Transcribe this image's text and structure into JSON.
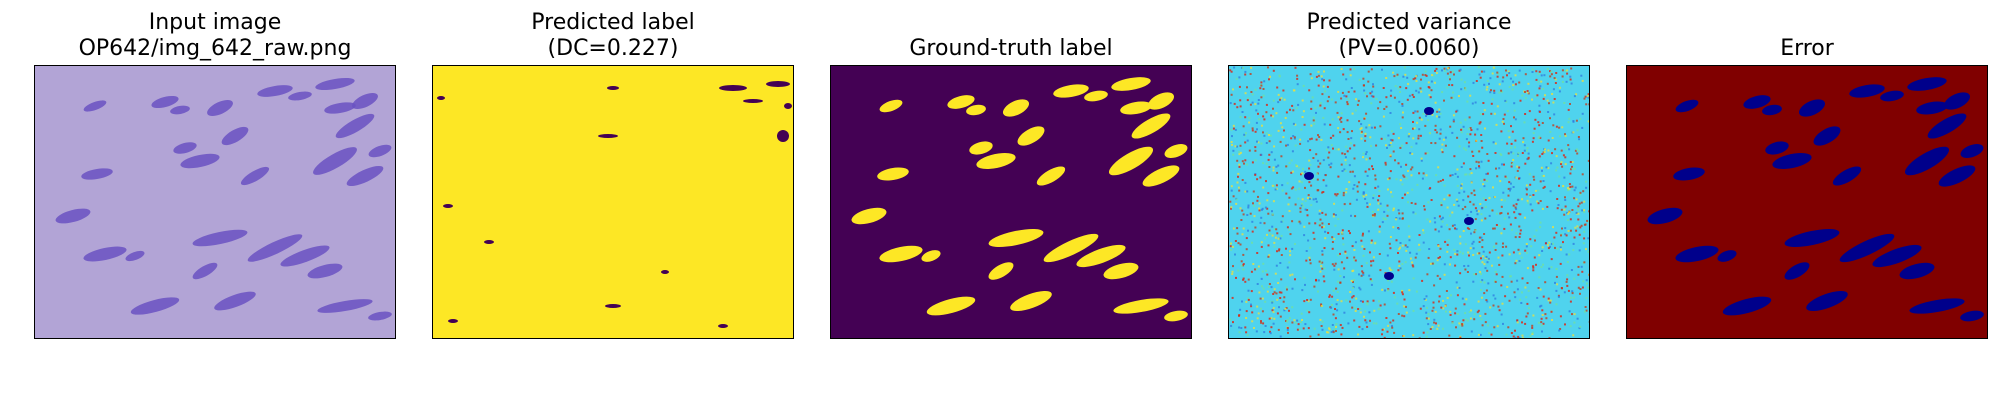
{
  "panels": [
    {
      "id": "input",
      "title_lines": [
        "Input image",
        "OP642/img_642_raw.png"
      ]
    },
    {
      "id": "predicted-label",
      "title_lines": [
        "Predicted label",
        "(DC=0.227)"
      ]
    },
    {
      "id": "ground-truth",
      "title_lines": [
        "",
        "Ground-truth label"
      ]
    },
    {
      "id": "predicted-variance",
      "title_lines": [
        "Predicted variance",
        "(PV=0.0060)"
      ]
    },
    {
      "id": "error",
      "title_lines": [
        "",
        "Error"
      ]
    }
  ],
  "colors": {
    "input_bg": "#b2a4d6",
    "input_nuclei": "#6a52c2",
    "viridis_yellow": "#fde725",
    "viridis_purple": "#440154",
    "jet_dark_red": "#800000",
    "jet_dark_blue": "#00008b",
    "jet_cyan": "#4fd3ee",
    "jet_red": "#e02010",
    "jet_yellow": "#e8e040"
  }
}
